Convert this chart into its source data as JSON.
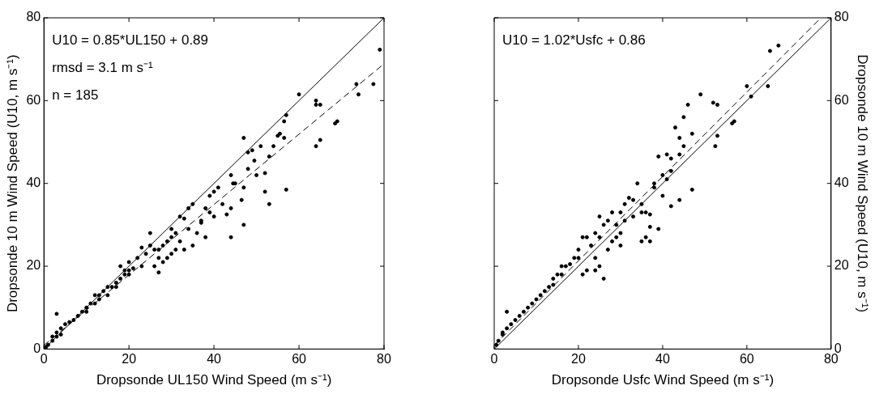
{
  "chart_data": [
    {
      "type": "scatter",
      "xlabel": "Dropsonde UL150 Wind Speed (m s⁻¹)",
      "ylabel": "Dropsonde 10 m Wind Speed (U10, m s⁻¹)",
      "xlim": [
        0,
        80
      ],
      "ylim": [
        0,
        80
      ],
      "xticks": [
        0,
        20,
        40,
        60,
        80
      ],
      "yticks": [
        0,
        20,
        40,
        60,
        80
      ],
      "grid": false,
      "legend": false,
      "annotations": [
        "U10 = 0.85*UL150 + 0.89",
        "rmsd = 3.1 m s⁻¹",
        "n = 185"
      ],
      "series": [
        {
          "type": "scatter",
          "marker": "circle",
          "color": "#000000",
          "x": [
            79,
            77.5,
            73.5,
            74,
            69,
            68.5,
            65,
            64,
            64,
            65,
            64,
            60,
            57,
            56.5,
            56.5,
            55.5,
            55,
            54,
            53,
            57,
            51,
            49,
            49.5,
            48,
            47,
            48,
            47,
            50,
            52,
            52,
            53,
            47,
            46.5,
            44,
            44.5,
            45,
            44,
            44,
            43,
            42,
            40,
            39,
            39,
            38,
            37,
            36,
            35,
            34,
            34,
            33,
            32,
            32,
            31,
            30,
            30,
            29,
            28,
            27,
            27,
            26,
            25,
            24,
            23,
            23,
            22,
            21,
            20,
            20,
            19,
            18,
            18,
            17,
            16,
            15,
            14,
            13,
            12,
            12,
            11,
            10,
            9,
            8,
            7,
            6,
            5,
            4,
            3,
            3,
            2,
            3,
            2,
            1,
            0.5,
            4,
            20,
            25,
            26,
            27,
            28,
            29,
            30,
            31,
            33,
            35,
            37,
            38,
            41,
            40,
            15,
            17,
            19,
            10,
            13
          ],
          "values": [
            72.3,
            64,
            64,
            61.5,
            55,
            54.5,
            59,
            60,
            59,
            50.5,
            49,
            61.5,
            56.5,
            55,
            51,
            52,
            51.5,
            49,
            46.5,
            38.5,
            49,
            48,
            45.5,
            47.5,
            51,
            43.5,
            39,
            42,
            42.5,
            38,
            35,
            30,
            36,
            42,
            40,
            40,
            34,
            27,
            32.5,
            35,
            38,
            37,
            33,
            34,
            30.5,
            28,
            35,
            34,
            29,
            31.5,
            32,
            26,
            28,
            29,
            27,
            26,
            25,
            24,
            22,
            24,
            25,
            23,
            24.5,
            20,
            22,
            19.5,
            19,
            18,
            19,
            17,
            20,
            16,
            15,
            15,
            14,
            13,
            13,
            11,
            11,
            10,
            9,
            8,
            7,
            6.5,
            6,
            5,
            4,
            3,
            3,
            8.5,
            2,
            1,
            0.5,
            3.5,
            21,
            28,
            20,
            18.5,
            21,
            22,
            23,
            24,
            24,
            25,
            31,
            27,
            39,
            32,
            13,
            15,
            18,
            9,
            12
          ]
        },
        {
          "type": "line",
          "marker": "none",
          "line_style": "solid",
          "color": "#000000",
          "x": [
            0,
            80
          ],
          "values": [
            0,
            80
          ]
        },
        {
          "type": "line",
          "marker": "none",
          "line_style": "dashed",
          "color": "#000000",
          "x": [
            0,
            80
          ],
          "values": [
            0.9,
            68.9
          ]
        }
      ]
    },
    {
      "type": "scatter",
      "xlabel": "Dropsonde Usfc Wind Speed (m s⁻¹)",
      "ylabel": "Dropsonde 10 m Wind Speed (U10, m s⁻¹)",
      "xlim": [
        0,
        80
      ],
      "ylim": [
        0,
        80
      ],
      "xticks": [
        0,
        20,
        40,
        60,
        80
      ],
      "yticks": [
        0,
        20,
        40,
        60,
        80
      ],
      "grid": false,
      "legend": false,
      "annotations": [
        "U10 = 1.02*Usfc + 0.86"
      ],
      "series": [
        {
          "type": "scatter",
          "marker": "circle",
          "color": "#000000",
          "x": [
            67.5,
            65.5,
            65,
            61,
            60,
            57,
            56.5,
            53,
            52,
            52.5,
            53,
            49,
            46,
            45,
            44,
            45,
            47,
            43,
            44,
            41,
            42,
            41,
            40,
            39,
            38,
            38,
            42,
            44,
            47,
            37,
            37,
            36,
            36,
            35,
            34,
            33,
            32,
            31,
            31,
            30,
            30,
            29,
            28,
            27,
            26,
            25,
            25,
            24,
            23,
            22,
            21,
            20,
            20,
            19,
            18,
            17,
            16,
            16,
            15,
            14,
            14,
            13,
            12,
            11,
            10,
            9,
            8,
            7,
            6,
            5,
            4,
            3,
            2,
            3,
            2,
            1,
            0.5,
            24,
            25,
            26,
            24,
            22,
            21,
            27,
            28,
            29,
            30,
            33,
            35,
            35,
            37,
            39,
            40,
            42
          ],
          "values": [
            73.3,
            72,
            63.5,
            61,
            63.5,
            55,
            54.5,
            59,
            59.5,
            49,
            51.5,
            61.5,
            59,
            56,
            51,
            49,
            52,
            53.5,
            47,
            47,
            46,
            41,
            42,
            46.5,
            40,
            39,
            34.5,
            36,
            38.5,
            32.5,
            29.5,
            27,
            33,
            35,
            40,
            36,
            36.5,
            35,
            31,
            33,
            28,
            30,
            33,
            31,
            30,
            32,
            27,
            28,
            25,
            27,
            27,
            24,
            22,
            22,
            20.5,
            20,
            20,
            18,
            18,
            17,
            15.5,
            15,
            14,
            13,
            12,
            11,
            10,
            9,
            8,
            7,
            6,
            5,
            4,
            9,
            3.5,
            2,
            1,
            22,
            20,
            17,
            19,
            19,
            18,
            24,
            26,
            27,
            25,
            32,
            33,
            26,
            26,
            29,
            37,
            43
          ]
        },
        {
          "type": "line",
          "marker": "none",
          "line_style": "solid",
          "color": "#000000",
          "x": [
            0,
            80
          ],
          "values": [
            0,
            80
          ]
        },
        {
          "type": "line",
          "marker": "none",
          "line_style": "dashed",
          "color": "#000000",
          "x": [
            0,
            77.5
          ],
          "values": [
            0.9,
            79.9
          ]
        }
      ]
    }
  ]
}
